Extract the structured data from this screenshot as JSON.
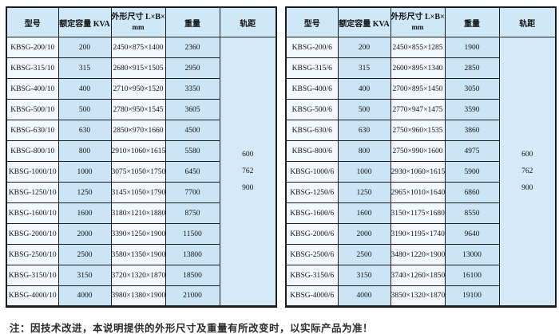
{
  "columns": {
    "model": "型号",
    "capacity": "额定容量 KVA",
    "dims_line1": "外形尺寸 L×B×H",
    "dims_line2": "mm",
    "weight": "重量",
    "gauge": "轨距"
  },
  "colors": {
    "header_bg": "#cee8f7",
    "cell_light": "#f2f8fd",
    "cell_blue": "#cbe5f6",
    "gauge_bg": "#d5eaf8",
    "border": "#1c1c1c"
  },
  "tables": [
    {
      "gauge": [
        "600",
        "762",
        "900"
      ],
      "rows": [
        [
          "KBSG-200/10",
          "200",
          "2450×875×1400",
          "2360"
        ],
        [
          "KBSG-315/10",
          "315",
          "2680×915×1505",
          "2950"
        ],
        [
          "KBSG-400/10",
          "400",
          "2710×950×1520",
          "3350"
        ],
        [
          "KBSG-500/10",
          "500",
          "2780×950×1545",
          "3605"
        ],
        [
          "KBSG-630/10",
          "630",
          "2850×970×1660",
          "4500"
        ],
        [
          "KBSG-800/10",
          "800",
          "2910×1060×1615",
          "5580"
        ],
        [
          "KBSG-1000/10",
          "1000",
          "3075×1050×1750",
          "6450"
        ],
        [
          "KBSG-1250/10",
          "1250",
          "3145×1050×1790",
          "7700"
        ],
        [
          "KBSG-1600/10",
          "1600",
          "3180×1210×1880",
          "8750"
        ],
        [
          "KBSG-2000/10",
          "2000",
          "3390×1250×1900",
          "11500"
        ],
        [
          "KBSG-2500/10",
          "2500",
          "3580×1350×1900",
          "13800"
        ],
        [
          "KBSG-3150/10",
          "3150",
          "3720×1320×1870",
          "18500"
        ],
        [
          "KBSG-4000/10",
          "4000",
          "3980×1380×1900",
          "21000"
        ]
      ]
    },
    {
      "gauge": [
        "600",
        "762",
        "900"
      ],
      "rows": [
        [
          "KBSG-200/6",
          "200",
          "2450×855×1285",
          "1900"
        ],
        [
          "KBSG-315/6",
          "315",
          "2600×895×1340",
          "2850"
        ],
        [
          "KBSG-400/6",
          "400",
          "2700×895×1450",
          "3050"
        ],
        [
          "KBSG-500/6",
          "500",
          "2770×947×1475",
          "3590"
        ],
        [
          "KBSG-630/6",
          "630",
          "2750×960×1535",
          "3860"
        ],
        [
          "KBSG-800/6",
          "800",
          "2750×990×1600",
          "4975"
        ],
        [
          "KBSG-1000/6",
          "1000",
          "2930×1060×1615",
          "5900"
        ],
        [
          "KBSG-1250/6",
          "1250",
          "2965×1010×1640",
          "6860"
        ],
        [
          "KBSG-1600/6",
          "1600",
          "3150×1175×1680",
          "8550"
        ],
        [
          "KBSG-2000/6",
          "2000",
          "3190×1195×1740",
          "9640"
        ],
        [
          "KBSG-2500/6",
          "2500",
          "3480×1220×1900",
          "13000"
        ],
        [
          "KBSG-3150/6",
          "3150",
          "3740×1260×1850",
          "16100"
        ],
        [
          "KBSG-4000/6",
          "4000",
          "3850×1320×1870",
          "19100"
        ]
      ]
    }
  ],
  "note": "注：因技术改进，本说明提供的外形尺寸及重量有所改变时，以实际产品为准！"
}
